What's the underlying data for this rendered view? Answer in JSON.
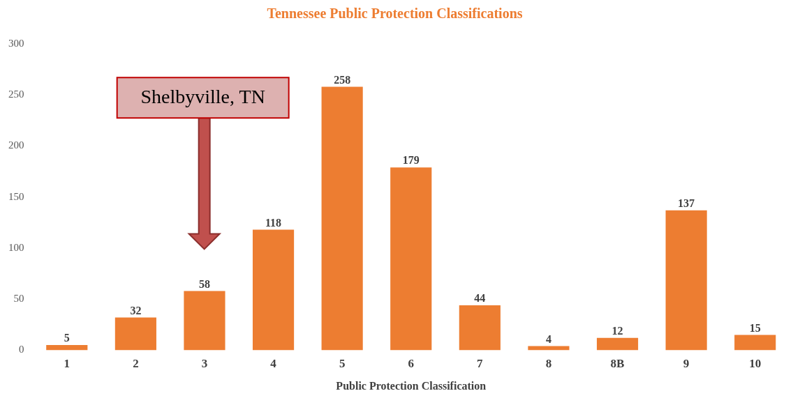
{
  "chart_data": {
    "type": "bar",
    "title": "Tennessee Public Protection Classifications",
    "xlabel": "Public Protection Classification",
    "categories": [
      "1",
      "2",
      "3",
      "4",
      "5",
      "6",
      "7",
      "8",
      "8B",
      "9",
      "10"
    ],
    "values": [
      5,
      32,
      58,
      118,
      258,
      179,
      44,
      4,
      12,
      137,
      15
    ],
    "color": "#ed7d31",
    "ylim": [
      0,
      300
    ],
    "yticks": [
      0,
      50,
      100,
      150,
      200,
      250,
      300
    ],
    "grid": false,
    "legend": false,
    "data_labels": true,
    "annotations": [
      "Shelbyville, TN"
    ]
  }
}
